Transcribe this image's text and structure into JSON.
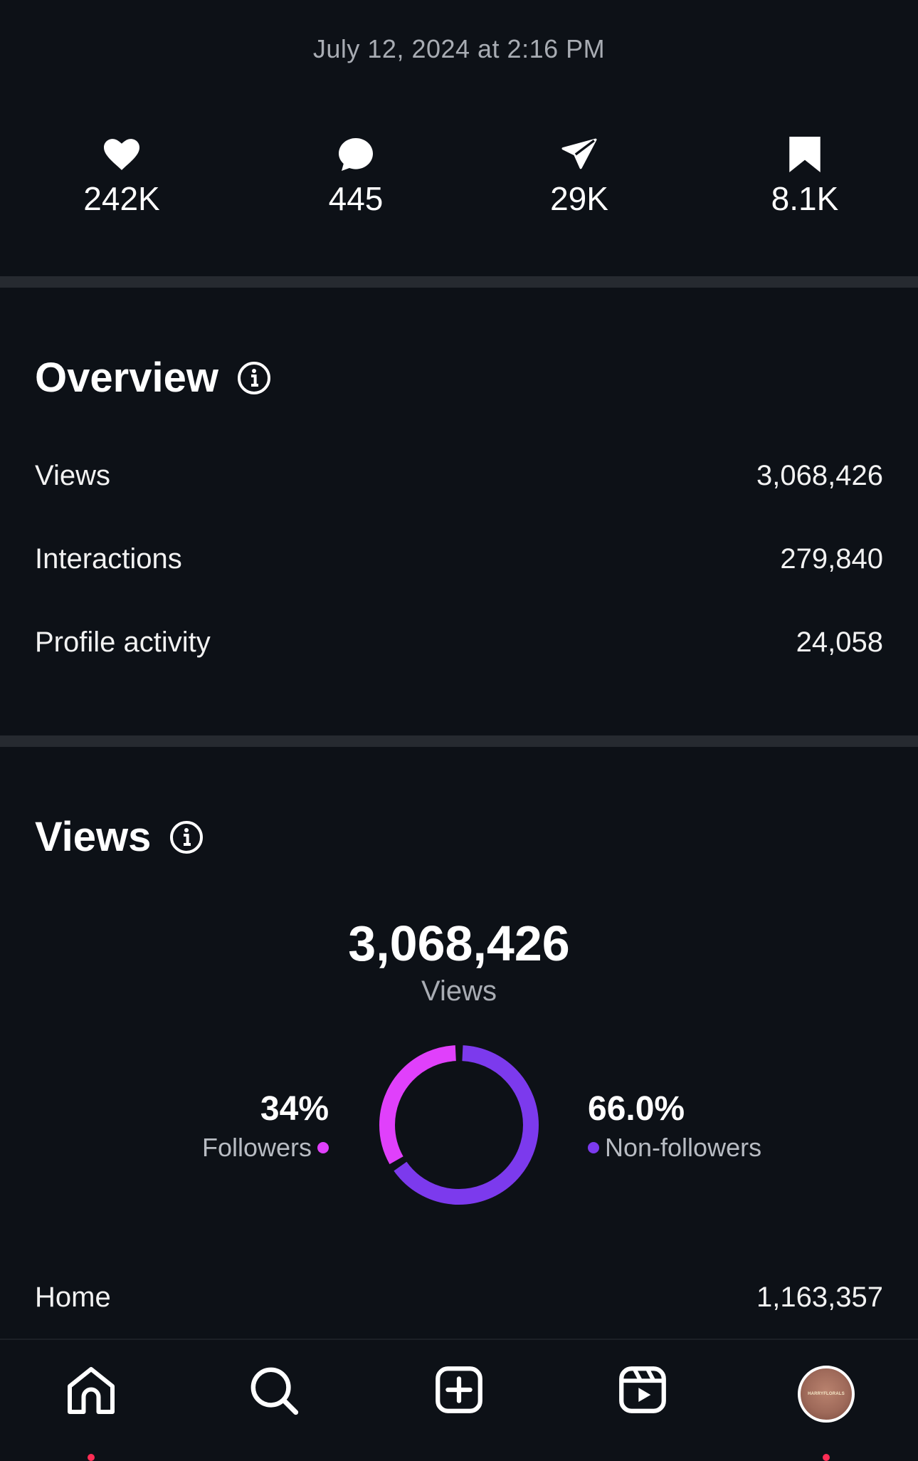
{
  "timestamp": "July 12, 2024 at 2:16 PM",
  "stats": {
    "likes": "242K",
    "comments": "445",
    "shares": "29K",
    "saves": "8.1K"
  },
  "overview": {
    "title": "Overview",
    "rows": [
      {
        "label": "Views",
        "value": "3,068,426"
      },
      {
        "label": "Interactions",
        "value": "279,840"
      },
      {
        "label": "Profile activity",
        "value": "24,058"
      }
    ]
  },
  "views": {
    "title": "Views",
    "total": "3,068,426",
    "total_label": "Views",
    "followers": {
      "pct": "34%",
      "label": "Followers",
      "fraction": 0.34,
      "color": "#e040fb"
    },
    "non_followers": {
      "pct": "66.0%",
      "label": "Non-followers",
      "fraction": 0.66,
      "color": "#7c3aed"
    },
    "home_row": {
      "label": "Home",
      "value": "1,163,357"
    }
  },
  "avatar": {
    "text": "HARRYFLORALS"
  },
  "icons": [
    "heart-icon",
    "comment-icon",
    "share-icon",
    "bookmark-icon",
    "info-icon",
    "home-icon",
    "search-icon",
    "create-icon",
    "reels-icon"
  ]
}
